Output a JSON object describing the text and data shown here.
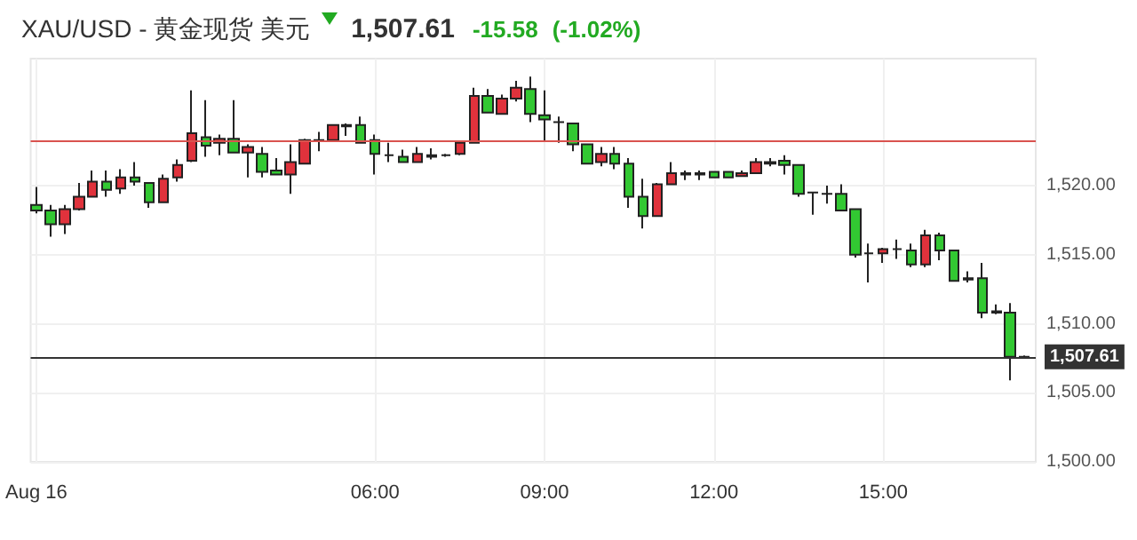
{
  "chart_data": {
    "type": "candlestick",
    "title": "XAU/USD - 黄金现货 美元",
    "annotations": [
      "1,507.61",
      "-15.58",
      "(-1.02%)"
    ],
    "x": [
      0,
      0.25,
      0.5,
      0.75,
      1,
      1.25,
      1.5,
      1.75,
      2,
      2.25,
      2.5,
      2.75,
      3,
      3.25,
      3.5,
      3.75,
      4,
      4.25,
      4.5,
      4.75,
      5,
      5.25,
      5.5,
      5.75,
      6,
      6.25,
      6.5,
      6.75,
      7,
      7.25,
      7.5,
      7.75,
      8,
      8.25,
      8.5,
      8.75,
      9,
      9.25,
      9.5,
      9.75,
      10,
      10.25,
      10.5,
      10.75,
      11,
      11.25,
      11.5,
      11.75,
      12,
      12.25,
      12.5,
      12.75,
      13,
      13.25,
      13.5,
      13.75,
      14,
      14.25,
      14.5,
      14.75,
      15,
      15.25,
      15.5,
      15.75,
      16,
      16.25,
      16.5,
      16.75,
      17,
      17.25,
      17.5
    ],
    "ohlc": [
      [
        1518.6,
        1519.9,
        1518.0,
        1518.2
      ],
      [
        1518.2,
        1518.6,
        1516.3,
        1517.2
      ],
      [
        1517.2,
        1518.6,
        1516.5,
        1518.3
      ],
      [
        1518.3,
        1520.2,
        1518.2,
        1519.2
      ],
      [
        1519.2,
        1521.1,
        1519.2,
        1520.3
      ],
      [
        1520.3,
        1521.1,
        1519.2,
        1519.7
      ],
      [
        1519.8,
        1521.2,
        1519.4,
        1520.6
      ],
      [
        1520.6,
        1521.7,
        1520.0,
        1520.3
      ],
      [
        1520.2,
        1520.2,
        1518.4,
        1518.8
      ],
      [
        1518.8,
        1520.8,
        1518.8,
        1520.5
      ],
      [
        1520.6,
        1521.9,
        1520.3,
        1521.5
      ],
      [
        1521.8,
        1526.9,
        1521.7,
        1523.8
      ],
      [
        1523.5,
        1526.2,
        1522.1,
        1522.9
      ],
      [
        1523.1,
        1523.7,
        1522.2,
        1523.4
      ],
      [
        1523.4,
        1526.2,
        1522.4,
        1522.4
      ],
      [
        1522.4,
        1523.0,
        1520.6,
        1522.8
      ],
      [
        1522.3,
        1522.8,
        1520.6,
        1521.0
      ],
      [
        1521.1,
        1522.0,
        1520.8,
        1520.8
      ],
      [
        1520.8,
        1523.0,
        1519.4,
        1521.7
      ],
      [
        1521.6,
        1523.4,
        1521.6,
        1523.3
      ],
      [
        1523.3,
        1523.9,
        1522.5,
        1523.3
      ],
      [
        1523.3,
        1524.4,
        1523.3,
        1524.4
      ],
      [
        1524.3,
        1524.5,
        1523.6,
        1524.4
      ],
      [
        1524.4,
        1525.0,
        1523.1,
        1523.1
      ],
      [
        1523.3,
        1523.7,
        1520.8,
        1522.3
      ],
      [
        1522.2,
        1523.1,
        1521.7,
        1522.2
      ],
      [
        1522.1,
        1522.6,
        1521.7,
        1521.7
      ],
      [
        1521.7,
        1522.8,
        1521.7,
        1522.3
      ],
      [
        1522.1,
        1522.7,
        1521.9,
        1522.2
      ],
      [
        1522.2,
        1522.3,
        1522.1,
        1522.2
      ],
      [
        1522.3,
        1523.2,
        1522.2,
        1523.1
      ],
      [
        1523.1,
        1527.1,
        1523.1,
        1526.5
      ],
      [
        1526.5,
        1527.0,
        1525.3,
        1525.3
      ],
      [
        1525.2,
        1526.6,
        1525.2,
        1526.3
      ],
      [
        1526.3,
        1527.6,
        1526.1,
        1527.1
      ],
      [
        1527.0,
        1527.9,
        1524.6,
        1525.2
      ],
      [
        1525.1,
        1526.9,
        1523.2,
        1524.8
      ],
      [
        1524.6,
        1525.0,
        1523.1,
        1524.6
      ],
      [
        1524.5,
        1524.5,
        1522.5,
        1523.0
      ],
      [
        1523.0,
        1523.0,
        1521.6,
        1521.6
      ],
      [
        1521.7,
        1522.8,
        1521.4,
        1522.3
      ],
      [
        1522.3,
        1522.8,
        1521.2,
        1521.6
      ],
      [
        1521.6,
        1522.0,
        1518.4,
        1519.2
      ],
      [
        1519.2,
        1520.5,
        1516.9,
        1517.8
      ],
      [
        1517.8,
        1520.2,
        1517.8,
        1520.1
      ],
      [
        1520.1,
        1521.7,
        1520.1,
        1520.9
      ],
      [
        1520.8,
        1521.1,
        1520.4,
        1520.9
      ],
      [
        1520.8,
        1521.1,
        1520.4,
        1520.9
      ],
      [
        1521.0,
        1521.0,
        1520.6,
        1520.6
      ],
      [
        1521.0,
        1521.0,
        1520.6,
        1520.6
      ],
      [
        1520.7,
        1521.1,
        1520.7,
        1520.9
      ],
      [
        1520.9,
        1522.0,
        1520.9,
        1521.7
      ],
      [
        1521.6,
        1522.0,
        1521.4,
        1521.7
      ],
      [
        1521.8,
        1522.2,
        1520.8,
        1521.5
      ],
      [
        1521.5,
        1521.5,
        1519.2,
        1519.4
      ],
      [
        1519.5,
        1519.5,
        1517.9,
        1519.5
      ],
      [
        1519.4,
        1520.0,
        1518.7,
        1519.4
      ],
      [
        1519.4,
        1520.1,
        1518.2,
        1518.2
      ],
      [
        1518.3,
        1518.3,
        1514.8,
        1515.0
      ],
      [
        1515.1,
        1515.8,
        1513.0,
        1515.1
      ],
      [
        1515.1,
        1515.5,
        1514.4,
        1515.4
      ],
      [
        1515.4,
        1516.1,
        1514.7,
        1515.4
      ],
      [
        1515.3,
        1515.8,
        1514.1,
        1514.3
      ],
      [
        1514.3,
        1516.8,
        1514.1,
        1516.4
      ],
      [
        1516.4,
        1516.6,
        1514.6,
        1515.3
      ],
      [
        1515.3,
        1515.3,
        1513.1,
        1513.1
      ],
      [
        1513.2,
        1513.8,
        1513.0,
        1513.3
      ],
      [
        1513.3,
        1514.4,
        1510.4,
        1510.8
      ],
      [
        1510.8,
        1511.4,
        1510.7,
        1510.9
      ],
      [
        1510.8,
        1511.5,
        1505.9,
        1507.61
      ],
      [
        1507.61,
        1507.7,
        1507.5,
        1507.61
      ]
    ],
    "colors": [
      "#32c832",
      "#32c832",
      "#e0323c",
      "#e0323c",
      "#e0323c",
      "#32c832",
      "#e0323c",
      "#32c832",
      "#32c832",
      "#e0323c",
      "#e0323c",
      "#e0323c",
      "#32c832",
      "#e0323c",
      "#32c832",
      "#e0323c",
      "#32c832",
      "#32c832",
      "#e0323c",
      "#e0323c",
      "#222222",
      "#e0323c",
      "#222222",
      "#32c832",
      "#32c832",
      "#222222",
      "#32c832",
      "#e0323c",
      "#222222",
      "#222222",
      "#e0323c",
      "#e0323c",
      "#32c832",
      "#e0323c",
      "#e0323c",
      "#32c832",
      "#32c832",
      "#222222",
      "#32c832",
      "#32c832",
      "#e0323c",
      "#32c832",
      "#32c832",
      "#32c832",
      "#e0323c",
      "#e0323c",
      "#222222",
      "#222222",
      "#32c832",
      "#32c832",
      "#e0323c",
      "#e0323c",
      "#222222",
      "#32c832",
      "#32c832",
      "#222222",
      "#222222",
      "#32c832",
      "#32c832",
      "#222222",
      "#e0323c",
      "#222222",
      "#32c832",
      "#e0323c",
      "#32c832",
      "#32c832",
      "#222222",
      "#32c832",
      "#222222",
      "#32c832",
      "#222222"
    ],
    "xlim": [
      -0.1,
      17.7
    ],
    "xticks": [
      {
        "value": 0,
        "label": "Aug 16"
      },
      {
        "value": 6,
        "label": "06:00"
      },
      {
        "value": 9,
        "label": "09:00"
      },
      {
        "value": 12,
        "label": "12:00"
      },
      {
        "value": 15,
        "label": "15:00"
      }
    ],
    "ylim": [
      1500,
      1529.2
    ],
    "yticks": [
      {
        "value": 1500,
        "label": "1,500.00"
      },
      {
        "value": 1505,
        "label": "1,505.00"
      },
      {
        "value": 1510,
        "label": "1,510.00"
      },
      {
        "value": 1515,
        "label": "1,515.00"
      },
      {
        "value": 1520,
        "label": "1,520.00"
      }
    ],
    "ref_lines": [
      {
        "axis": "y",
        "value": 1523.19,
        "label": null,
        "color": "#d9534f"
      },
      {
        "axis": "y",
        "value": 1507.61,
        "label": "1,507.61",
        "color": "#333333"
      }
    ],
    "grid": true
  }
}
